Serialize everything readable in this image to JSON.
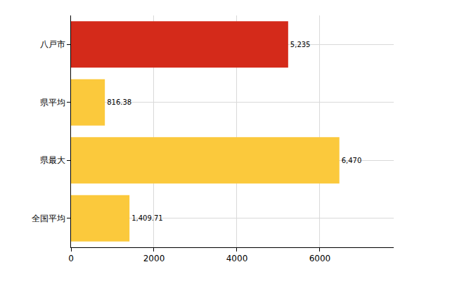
{
  "chart_data": {
    "type": "bar",
    "orientation": "horizontal",
    "categories": [
      "八戸市",
      "県平均",
      "県最大",
      "全国平均"
    ],
    "values": [
      5235,
      816.38,
      6470,
      1409.71
    ],
    "value_labels": [
      "5,235",
      "816.38",
      "6,470",
      "1,409.71"
    ],
    "colors": [
      "#d42a1a",
      "#fbc93c",
      "#fbc93c",
      "#fbc93c"
    ],
    "xlim": [
      0,
      7780
    ],
    "xticks": [
      0,
      2000,
      4000,
      6000
    ],
    "grid": true,
    "data_labels": true
  }
}
